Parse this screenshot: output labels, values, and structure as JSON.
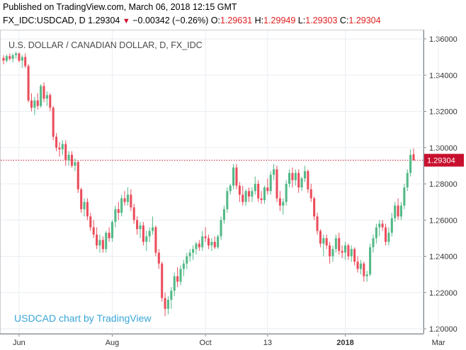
{
  "header": {
    "published": "Published on TradingView.com, March 06, 2018 12:15 GMT",
    "symbol": "FX_IDC:USDCAD, D",
    "last": "1.29304",
    "change": "−0.00342 (−0.26%)",
    "o_label": "O:",
    "o_value": "1.29631",
    "h_label": "H:",
    "h_value": "1.29949",
    "l_label": "L:",
    "l_value": "1.29303",
    "c_label": "C:",
    "c_value": "1.29304"
  },
  "colors": {
    "up": "#53b987",
    "down": "#eb4d5c",
    "price_line": "#c8102e",
    "watermark": "#3aa6d8",
    "grid": "#e9eef3"
  },
  "chart_data": {
    "type": "candlestick",
    "title": "U.S. DOLLAR / CANADIAN DOLLAR, D, FX_IDC",
    "watermark": "USDCAD chart by TradingView",
    "last_price_label": "1.29304",
    "last_price": 1.29304,
    "ylim": [
      1.2,
      1.36
    ],
    "y_ticks": [
      "1.36000",
      "1.34000",
      "1.32000",
      "1.30000",
      "1.28000",
      "1.26000",
      "1.24000",
      "1.22000",
      "1.20000"
    ],
    "y_tick_values": [
      1.36,
      1.34,
      1.32,
      1.3,
      1.28,
      1.26,
      1.24,
      1.22,
      1.2
    ],
    "x_ticks": [
      "Jun",
      "Aug",
      "Oct",
      "13",
      "2018",
      "Mar"
    ],
    "x_tick_bar_index": [
      5,
      35,
      65,
      85,
      110,
      140
    ],
    "grid": true,
    "candles": [
      {
        "o": 1.3495,
        "h": 1.351,
        "l": 1.346,
        "c": 1.348
      },
      {
        "o": 1.348,
        "h": 1.3515,
        "l": 1.347,
        "c": 1.3505
      },
      {
        "o": 1.3505,
        "h": 1.352,
        "l": 1.348,
        "c": 1.349
      },
      {
        "o": 1.349,
        "h": 1.352,
        "l": 1.347,
        "c": 1.351
      },
      {
        "o": 1.351,
        "h": 1.353,
        "l": 1.349,
        "c": 1.352
      },
      {
        "o": 1.352,
        "h": 1.3525,
        "l": 1.347,
        "c": 1.348
      },
      {
        "o": 1.348,
        "h": 1.351,
        "l": 1.344,
        "c": 1.35
      },
      {
        "o": 1.35,
        "h": 1.352,
        "l": 1.344,
        "c": 1.345
      },
      {
        "o": 1.345,
        "h": 1.346,
        "l": 1.325,
        "c": 1.326
      },
      {
        "o": 1.326,
        "h": 1.33,
        "l": 1.32,
        "c": 1.322
      },
      {
        "o": 1.322,
        "h": 1.328,
        "l": 1.318,
        "c": 1.326
      },
      {
        "o": 1.326,
        "h": 1.33,
        "l": 1.321,
        "c": 1.323
      },
      {
        "o": 1.323,
        "h": 1.335,
        "l": 1.322,
        "c": 1.334
      },
      {
        "o": 1.334,
        "h": 1.336,
        "l": 1.325,
        "c": 1.327
      },
      {
        "o": 1.327,
        "h": 1.331,
        "l": 1.323,
        "c": 1.329
      },
      {
        "o": 1.329,
        "h": 1.33,
        "l": 1.32,
        "c": 1.322
      },
      {
        "o": 1.322,
        "h": 1.323,
        "l": 1.304,
        "c": 1.306
      },
      {
        "o": 1.306,
        "h": 1.308,
        "l": 1.298,
        "c": 1.3
      },
      {
        "o": 1.3,
        "h": 1.303,
        "l": 1.295,
        "c": 1.299
      },
      {
        "o": 1.299,
        "h": 1.304,
        "l": 1.296,
        "c": 1.302
      },
      {
        "o": 1.302,
        "h": 1.304,
        "l": 1.29,
        "c": 1.293
      },
      {
        "o": 1.293,
        "h": 1.298,
        "l": 1.29,
        "c": 1.296
      },
      {
        "o": 1.296,
        "h": 1.298,
        "l": 1.289,
        "c": 1.29
      },
      {
        "o": 1.29,
        "h": 1.294,
        "l": 1.287,
        "c": 1.292
      },
      {
        "o": 1.292,
        "h": 1.293,
        "l": 1.275,
        "c": 1.277
      },
      {
        "o": 1.277,
        "h": 1.278,
        "l": 1.264,
        "c": 1.266
      },
      {
        "o": 1.266,
        "h": 1.272,
        "l": 1.262,
        "c": 1.27
      },
      {
        "o": 1.27,
        "h": 1.272,
        "l": 1.26,
        "c": 1.262
      },
      {
        "o": 1.262,
        "h": 1.264,
        "l": 1.254,
        "c": 1.256
      },
      {
        "o": 1.256,
        "h": 1.26,
        "l": 1.25,
        "c": 1.252
      },
      {
        "o": 1.252,
        "h": 1.256,
        "l": 1.244,
        "c": 1.246
      },
      {
        "o": 1.246,
        "h": 1.252,
        "l": 1.242,
        "c": 1.249
      },
      {
        "o": 1.249,
        "h": 1.251,
        "l": 1.242,
        "c": 1.244
      },
      {
        "o": 1.244,
        "h": 1.254,
        "l": 1.242,
        "c": 1.253
      },
      {
        "o": 1.253,
        "h": 1.256,
        "l": 1.248,
        "c": 1.25
      },
      {
        "o": 1.25,
        "h": 1.26,
        "l": 1.248,
        "c": 1.259
      },
      {
        "o": 1.259,
        "h": 1.268,
        "l": 1.256,
        "c": 1.266
      },
      {
        "o": 1.266,
        "h": 1.27,
        "l": 1.26,
        "c": 1.264
      },
      {
        "o": 1.264,
        "h": 1.274,
        "l": 1.262,
        "c": 1.272
      },
      {
        "o": 1.272,
        "h": 1.276,
        "l": 1.268,
        "c": 1.27
      },
      {
        "o": 1.27,
        "h": 1.278,
        "l": 1.268,
        "c": 1.274
      },
      {
        "o": 1.274,
        "h": 1.277,
        "l": 1.265,
        "c": 1.267
      },
      {
        "o": 1.267,
        "h": 1.269,
        "l": 1.258,
        "c": 1.26
      },
      {
        "o": 1.26,
        "h": 1.262,
        "l": 1.252,
        "c": 1.255
      },
      {
        "o": 1.255,
        "h": 1.259,
        "l": 1.25,
        "c": 1.257
      },
      {
        "o": 1.257,
        "h": 1.259,
        "l": 1.246,
        "c": 1.248
      },
      {
        "o": 1.248,
        "h": 1.254,
        "l": 1.243,
        "c": 1.251
      },
      {
        "o": 1.251,
        "h": 1.256,
        "l": 1.248,
        "c": 1.254
      },
      {
        "o": 1.254,
        "h": 1.262,
        "l": 1.252,
        "c": 1.256
      },
      {
        "o": 1.256,
        "h": 1.257,
        "l": 1.24,
        "c": 1.242
      },
      {
        "o": 1.242,
        "h": 1.244,
        "l": 1.233,
        "c": 1.236
      },
      {
        "o": 1.236,
        "h": 1.237,
        "l": 1.215,
        "c": 1.217
      },
      {
        "o": 1.217,
        "h": 1.22,
        "l": 1.207,
        "c": 1.211
      },
      {
        "o": 1.211,
        "h": 1.218,
        "l": 1.208,
        "c": 1.216
      },
      {
        "o": 1.216,
        "h": 1.223,
        "l": 1.211,
        "c": 1.221
      },
      {
        "o": 1.221,
        "h": 1.231,
        "l": 1.218,
        "c": 1.229
      },
      {
        "o": 1.229,
        "h": 1.234,
        "l": 1.223,
        "c": 1.226
      },
      {
        "o": 1.226,
        "h": 1.235,
        "l": 1.224,
        "c": 1.233
      },
      {
        "o": 1.233,
        "h": 1.238,
        "l": 1.229,
        "c": 1.236
      },
      {
        "o": 1.236,
        "h": 1.242,
        "l": 1.233,
        "c": 1.24
      },
      {
        "o": 1.24,
        "h": 1.244,
        "l": 1.237,
        "c": 1.242
      },
      {
        "o": 1.242,
        "h": 1.246,
        "l": 1.238,
        "c": 1.244
      },
      {
        "o": 1.244,
        "h": 1.248,
        "l": 1.241,
        "c": 1.247
      },
      {
        "o": 1.247,
        "h": 1.249,
        "l": 1.243,
        "c": 1.245
      },
      {
        "o": 1.245,
        "h": 1.254,
        "l": 1.243,
        "c": 1.251
      },
      {
        "o": 1.251,
        "h": 1.256,
        "l": 1.248,
        "c": 1.25
      },
      {
        "o": 1.25,
        "h": 1.252,
        "l": 1.244,
        "c": 1.246
      },
      {
        "o": 1.246,
        "h": 1.25,
        "l": 1.243,
        "c": 1.248
      },
      {
        "o": 1.248,
        "h": 1.251,
        "l": 1.244,
        "c": 1.245
      },
      {
        "o": 1.245,
        "h": 1.252,
        "l": 1.244,
        "c": 1.251
      },
      {
        "o": 1.251,
        "h": 1.262,
        "l": 1.249,
        "c": 1.26
      },
      {
        "o": 1.26,
        "h": 1.268,
        "l": 1.258,
        "c": 1.266
      },
      {
        "o": 1.266,
        "h": 1.278,
        "l": 1.264,
        "c": 1.276
      },
      {
        "o": 1.276,
        "h": 1.28,
        "l": 1.274,
        "c": 1.279
      },
      {
        "o": 1.279,
        "h": 1.291,
        "l": 1.277,
        "c": 1.289
      },
      {
        "o": 1.289,
        "h": 1.291,
        "l": 1.277,
        "c": 1.279
      },
      {
        "o": 1.279,
        "h": 1.281,
        "l": 1.27,
        "c": 1.274
      },
      {
        "o": 1.274,
        "h": 1.279,
        "l": 1.268,
        "c": 1.27
      },
      {
        "o": 1.27,
        "h": 1.277,
        "l": 1.268,
        "c": 1.276
      },
      {
        "o": 1.276,
        "h": 1.278,
        "l": 1.27,
        "c": 1.273
      },
      {
        "o": 1.273,
        "h": 1.278,
        "l": 1.27,
        "c": 1.276
      },
      {
        "o": 1.276,
        "h": 1.284,
        "l": 1.274,
        "c": 1.28
      },
      {
        "o": 1.28,
        "h": 1.282,
        "l": 1.27,
        "c": 1.272
      },
      {
        "o": 1.272,
        "h": 1.276,
        "l": 1.269,
        "c": 1.271
      },
      {
        "o": 1.271,
        "h": 1.279,
        "l": 1.269,
        "c": 1.278
      },
      {
        "o": 1.278,
        "h": 1.283,
        "l": 1.274,
        "c": 1.276
      },
      {
        "o": 1.276,
        "h": 1.287,
        "l": 1.274,
        "c": 1.285
      },
      {
        "o": 1.285,
        "h": 1.291,
        "l": 1.282,
        "c": 1.288
      },
      {
        "o": 1.288,
        "h": 1.29,
        "l": 1.27,
        "c": 1.272
      },
      {
        "o": 1.272,
        "h": 1.276,
        "l": 1.265,
        "c": 1.268
      },
      {
        "o": 1.268,
        "h": 1.272,
        "l": 1.263,
        "c": 1.27
      },
      {
        "o": 1.27,
        "h": 1.282,
        "l": 1.268,
        "c": 1.28
      },
      {
        "o": 1.28,
        "h": 1.288,
        "l": 1.278,
        "c": 1.286
      },
      {
        "o": 1.286,
        "h": 1.289,
        "l": 1.278,
        "c": 1.282
      },
      {
        "o": 1.282,
        "h": 1.288,
        "l": 1.279,
        "c": 1.286
      },
      {
        "o": 1.286,
        "h": 1.288,
        "l": 1.275,
        "c": 1.278
      },
      {
        "o": 1.278,
        "h": 1.284,
        "l": 1.276,
        "c": 1.283
      },
      {
        "o": 1.283,
        "h": 1.29,
        "l": 1.281,
        "c": 1.287
      },
      {
        "o": 1.287,
        "h": 1.288,
        "l": 1.275,
        "c": 1.277
      },
      {
        "o": 1.277,
        "h": 1.28,
        "l": 1.27,
        "c": 1.272
      },
      {
        "o": 1.272,
        "h": 1.273,
        "l": 1.26,
        "c": 1.262
      },
      {
        "o": 1.262,
        "h": 1.264,
        "l": 1.252,
        "c": 1.254
      },
      {
        "o": 1.254,
        "h": 1.255,
        "l": 1.245,
        "c": 1.247
      },
      {
        "o": 1.247,
        "h": 1.252,
        "l": 1.24,
        "c": 1.25
      },
      {
        "o": 1.25,
        "h": 1.252,
        "l": 1.244,
        "c": 1.246
      },
      {
        "o": 1.246,
        "h": 1.248,
        "l": 1.236,
        "c": 1.24
      },
      {
        "o": 1.24,
        "h": 1.246,
        "l": 1.237,
        "c": 1.244
      },
      {
        "o": 1.244,
        "h": 1.252,
        "l": 1.242,
        "c": 1.25
      },
      {
        "o": 1.25,
        "h": 1.253,
        "l": 1.241,
        "c": 1.243
      },
      {
        "o": 1.243,
        "h": 1.246,
        "l": 1.239,
        "c": 1.242
      },
      {
        "o": 1.242,
        "h": 1.248,
        "l": 1.238,
        "c": 1.246
      },
      {
        "o": 1.246,
        "h": 1.247,
        "l": 1.238,
        "c": 1.24
      },
      {
        "o": 1.24,
        "h": 1.246,
        "l": 1.237,
        "c": 1.244
      },
      {
        "o": 1.244,
        "h": 1.245,
        "l": 1.235,
        "c": 1.237
      },
      {
        "o": 1.237,
        "h": 1.24,
        "l": 1.231,
        "c": 1.233
      },
      {
        "o": 1.233,
        "h": 1.238,
        "l": 1.23,
        "c": 1.236
      },
      {
        "o": 1.236,
        "h": 1.237,
        "l": 1.226,
        "c": 1.229
      },
      {
        "o": 1.229,
        "h": 1.232,
        "l": 1.226,
        "c": 1.23
      },
      {
        "o": 1.23,
        "h": 1.247,
        "l": 1.229,
        "c": 1.245
      },
      {
        "o": 1.245,
        "h": 1.252,
        "l": 1.242,
        "c": 1.25
      },
      {
        "o": 1.25,
        "h": 1.258,
        "l": 1.247,
        "c": 1.256
      },
      {
        "o": 1.256,
        "h": 1.26,
        "l": 1.251,
        "c": 1.258
      },
      {
        "o": 1.258,
        "h": 1.26,
        "l": 1.254,
        "c": 1.256
      },
      {
        "o": 1.256,
        "h": 1.258,
        "l": 1.246,
        "c": 1.248
      },
      {
        "o": 1.248,
        "h": 1.256,
        "l": 1.246,
        "c": 1.253
      },
      {
        "o": 1.253,
        "h": 1.264,
        "l": 1.251,
        "c": 1.261
      },
      {
        "o": 1.261,
        "h": 1.27,
        "l": 1.259,
        "c": 1.268
      },
      {
        "o": 1.268,
        "h": 1.272,
        "l": 1.26,
        "c": 1.262
      },
      {
        "o": 1.262,
        "h": 1.27,
        "l": 1.26,
        "c": 1.268
      },
      {
        "o": 1.268,
        "h": 1.28,
        "l": 1.266,
        "c": 1.278
      },
      {
        "o": 1.278,
        "h": 1.288,
        "l": 1.276,
        "c": 1.286
      },
      {
        "o": 1.286,
        "h": 1.299,
        "l": 1.284,
        "c": 1.296
      },
      {
        "o": 1.2963,
        "h": 1.2995,
        "l": 1.293,
        "c": 1.293
      }
    ]
  }
}
